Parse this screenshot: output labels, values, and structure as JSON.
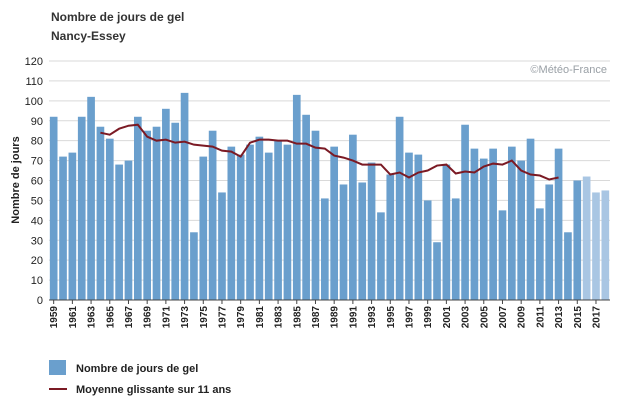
{
  "chart_data": {
    "type": "bar",
    "title": "Nombre de jours de gel",
    "subtitle": "Nancy-Essey",
    "ylabel": "Nombre de jours",
    "ylim": [
      0,
      120
    ],
    "yticks": [
      0,
      10,
      20,
      30,
      40,
      50,
      60,
      70,
      80,
      90,
      100,
      110,
      120
    ],
    "watermark": "©Météo-France",
    "grid": true,
    "legend_position": "bottom-left",
    "x_tick_labels": [
      "1959",
      "1961",
      "1963",
      "1965",
      "1967",
      "1969",
      "1971",
      "1973",
      "1975",
      "1977",
      "1979",
      "1981",
      "1983",
      "1985",
      "1987",
      "1989",
      "1991",
      "1993",
      "1995",
      "1997",
      "1999",
      "2001",
      "2003",
      "2005",
      "2007",
      "2009",
      "2011",
      "2013",
      "2015",
      "2017"
    ],
    "categories": [
      1959,
      1960,
      1961,
      1962,
      1963,
      1964,
      1965,
      1966,
      1967,
      1968,
      1969,
      1970,
      1971,
      1972,
      1973,
      1974,
      1975,
      1976,
      1977,
      1978,
      1979,
      1980,
      1981,
      1982,
      1983,
      1984,
      1985,
      1986,
      1987,
      1988,
      1989,
      1990,
      1991,
      1992,
      1993,
      1994,
      1995,
      1996,
      1997,
      1998,
      1999,
      2000,
      2001,
      2002,
      2003,
      2004,
      2005,
      2006,
      2007,
      2008,
      2009,
      2010,
      2011,
      2012,
      2013,
      2014,
      2015,
      2016,
      2017,
      2018
    ],
    "series": [
      {
        "name": "Nombre de jours de gel",
        "kind": "bar",
        "color": "#6a9fcd",
        "light_color": "#a9c6e3",
        "light_from": 2016,
        "values": [
          92,
          72,
          74,
          92,
          102,
          87,
          81,
          68,
          70,
          92,
          85,
          87,
          96,
          89,
          104,
          34,
          72,
          85,
          54,
          77,
          73,
          78,
          82,
          74,
          80,
          78,
          103,
          93,
          85,
          51,
          77,
          58,
          83,
          59,
          69,
          44,
          63,
          92,
          74,
          73,
          50,
          29,
          68,
          51,
          88,
          76,
          71,
          76,
          45,
          77,
          70,
          81,
          46,
          58,
          76,
          34,
          60,
          62,
          54,
          55
        ]
      },
      {
        "name": "Moyenne glissante sur 11 ans",
        "kind": "line",
        "color": "#7b1a24",
        "x": [
          1964,
          1965,
          1966,
          1967,
          1968,
          1969,
          1970,
          1971,
          1972,
          1973,
          1974,
          1975,
          1976,
          1977,
          1978,
          1979,
          1980,
          1981,
          1982,
          1983,
          1984,
          1985,
          1986,
          1987,
          1988,
          1989,
          1990,
          1991,
          1992,
          1993,
          1994,
          1995,
          1996,
          1997,
          1998,
          1999,
          2000,
          2001,
          2002,
          2003,
          2004,
          2005,
          2006,
          2007,
          2008,
          2009,
          2010,
          2011,
          2012,
          2013
        ],
        "values": [
          84,
          83,
          86,
          87.5,
          88,
          82,
          80,
          80.5,
          79,
          79.5,
          78,
          77.5,
          77,
          75,
          74.5,
          72,
          79,
          80.5,
          80.5,
          80,
          80,
          78.5,
          78.5,
          76.5,
          76,
          72.5,
          71.5,
          70,
          68,
          68,
          68,
          63,
          64,
          61.5,
          64,
          65,
          67.5,
          68,
          63.5,
          64.5,
          64,
          67,
          68.5,
          68,
          70,
          65,
          63,
          62.5,
          60.5,
          61.5
        ]
      }
    ]
  }
}
